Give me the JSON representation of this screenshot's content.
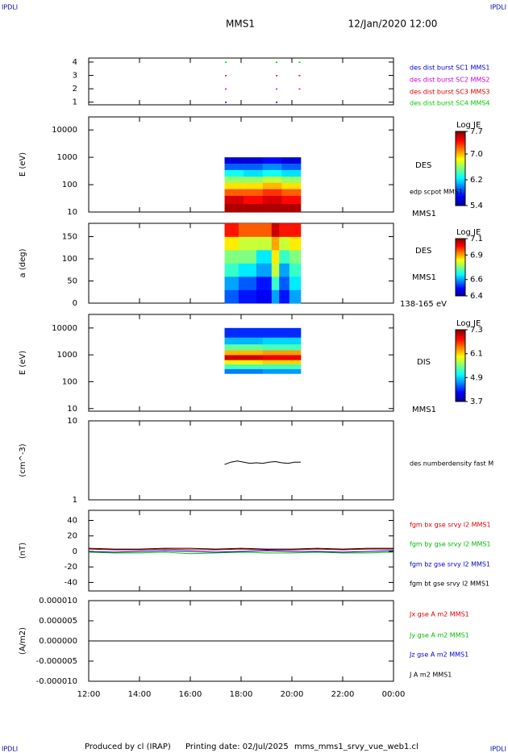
{
  "header": {
    "corners": [
      "IPDLI",
      "IPDLI",
      "IPDLI",
      "IPDLI"
    ],
    "spacecraft": "MMS1",
    "date": "12/Jan/2020 12:00"
  },
  "footer": {
    "produced": "Produced by cl (IRAP)",
    "printing": "Printing date: 02/Jul/2025",
    "file": "mms_mms1_srvy_vue_web1.cl"
  },
  "chart_data": [
    {
      "type": "scatter",
      "xlim": [
        12,
        24
      ],
      "ylim": [
        0.8,
        4.3
      ],
      "yticks": [
        1,
        2,
        3,
        4
      ],
      "series": [
        {
          "name": "des dist burst SC1 MMS1",
          "color": "#0000cc",
          "x": [
            17.4,
            19.4
          ],
          "values": [
            1,
            1
          ]
        },
        {
          "name": "des dist burst SC2 MMS2",
          "color": "#cc00cc",
          "x": [
            17.4,
            19.4,
            20.3
          ],
          "values": [
            2,
            2,
            2
          ]
        },
        {
          "name": "des dist burst SC3 MMS3",
          "color": "#dd0000",
          "x": [
            17.4,
            19.4,
            20.3
          ],
          "values": [
            3,
            3,
            3
          ]
        },
        {
          "name": "des dist burst SC4 MMS4",
          "color": "#00cc00",
          "x": [
            17.4,
            19.4,
            20.3
          ],
          "values": [
            4,
            4,
            4
          ]
        }
      ]
    },
    {
      "type": "heatmap",
      "ylabel": "E (eV)",
      "log_scale": true,
      "xlim": [
        12,
        24
      ],
      "ylim": [
        10,
        30000
      ],
      "yticks": [
        10,
        100,
        1000,
        10000
      ],
      "x_edges": [
        17.35,
        18.1,
        18.85,
        19.6,
        20.35
      ],
      "y_edges": [
        10,
        20,
        40,
        70,
        120,
        200,
        350,
        600,
        1000
      ],
      "values": [
        [
          7.6,
          7.6,
          7.6,
          7.6
        ],
        [
          7.5,
          7.4,
          7.5,
          7.4
        ],
        [
          7.2,
          7.2,
          7.3,
          7.2
        ],
        [
          6.9,
          6.9,
          7.0,
          6.9
        ],
        [
          6.6,
          6.6,
          6.7,
          6.6
        ],
        [
          6.3,
          6.2,
          6.3,
          6.2
        ],
        [
          5.9,
          5.9,
          6.0,
          5.9
        ],
        [
          5.6,
          5.6,
          5.7,
          5.6
        ]
      ],
      "colorbar": {
        "label": "Log JE",
        "lim": [
          5.4,
          7.7
        ],
        "ticks": [
          7.7,
          {
            "value": 7,
            "label": "7.0"
          },
          6.2,
          5.4
        ]
      },
      "annotations": [
        "DES",
        "edp scpot MMS1",
        "MMS1"
      ]
    },
    {
      "type": "heatmap",
      "ylabel": "a (deg)",
      "xlim": [
        12,
        24
      ],
      "ylim": [
        0,
        180
      ],
      "yticks": [
        0,
        50,
        100,
        150
      ],
      "x_edges": [
        17.35,
        17.9,
        18.6,
        19.2,
        19.5,
        19.9,
        20.35
      ],
      "y_edges": [
        0,
        30,
        60,
        90,
        120,
        150,
        180
      ],
      "values": [
        [
          6.55,
          6.5,
          6.48,
          6.6,
          6.5,
          6.6
        ],
        [
          6.6,
          6.55,
          6.5,
          6.7,
          6.55,
          6.65
        ],
        [
          6.7,
          6.65,
          6.6,
          6.8,
          6.6,
          6.7
        ],
        [
          6.75,
          6.75,
          6.65,
          6.85,
          6.7,
          6.75
        ],
        [
          6.85,
          6.8,
          6.8,
          6.9,
          6.8,
          6.85
        ],
        [
          7.0,
          6.95,
          6.95,
          7.05,
          7.0,
          7.0
        ]
      ],
      "colorbar": {
        "label": "Log JE",
        "lim": [
          6.4,
          7.1
        ],
        "ticks": [
          7.1,
          6.9,
          6.6,
          6.4
        ]
      },
      "annotations": [
        "DES",
        "MMS1",
        "138-165 eV"
      ]
    },
    {
      "type": "heatmap",
      "ylabel": "E (eV)",
      "log_scale": true,
      "xlim": [
        12,
        24
      ],
      "ylim": [
        8,
        32000
      ],
      "yticks": [
        10,
        100,
        1000,
        10000
      ],
      "x_edges": [
        17.35,
        18.85,
        20.35
      ],
      "y_edges": [
        200,
        300,
        450,
        650,
        1000,
        1500,
        2500,
        4500,
        10000
      ],
      "values": [
        [
          4.6,
          4.7
        ],
        [
          5.3,
          5.3
        ],
        [
          6.0,
          6.1
        ],
        [
          7.0,
          6.9
        ],
        [
          6.2,
          6.3
        ],
        [
          5.4,
          5.3
        ],
        [
          4.8,
          4.9
        ],
        [
          4.3,
          4.3
        ]
      ],
      "colorbar": {
        "label": "Log JE",
        "lim": [
          3.7,
          7.3
        ],
        "ticks": [
          7.3,
          6.1,
          4.9,
          3.7
        ]
      },
      "annotations": [
        "DIS",
        "MMS1"
      ]
    },
    {
      "type": "line",
      "ylabel": "(cm^-3)",
      "log_scale": true,
      "xlim": [
        12,
        24
      ],
      "ylim": [
        1,
        10
      ],
      "yticks": [
        1,
        10
      ],
      "series": [
        {
          "name": "des numberdensity fast M",
          "color": "#000000",
          "x": [
            17.35,
            17.6,
            17.85,
            18.1,
            18.35,
            18.6,
            18.85,
            19.1,
            19.35,
            19.6,
            19.85,
            20.1,
            20.35
          ],
          "values": [
            2.8,
            3.0,
            3.1,
            3.0,
            2.9,
            2.95,
            2.9,
            3.0,
            3.05,
            2.95,
            2.9,
            3.0,
            3.0
          ]
        }
      ]
    },
    {
      "type": "line",
      "ylabel": "(nT)",
      "xlim": [
        12,
        24
      ],
      "ylim": [
        -51,
        53
      ],
      "yticks": [
        -40,
        -20,
        0,
        20,
        40
      ],
      "series": [
        {
          "name": "fgm bx gse srvy l2 MMS1",
          "color": "#dd0000",
          "x": [
            12,
            13,
            14,
            15,
            16,
            17,
            18,
            19,
            20,
            21,
            22,
            23,
            24
          ],
          "values": [
            3,
            2,
            2,
            3,
            2,
            2,
            3,
            2,
            2,
            3,
            2,
            3,
            3
          ]
        },
        {
          "name": "fgm by gse srvy l2 MMS1",
          "color": "#00bb00",
          "x": [
            12,
            13,
            14,
            15,
            16,
            17,
            18,
            19,
            20,
            21,
            22,
            23,
            24
          ],
          "values": [
            -1,
            -2,
            -2,
            -1,
            -3,
            -2,
            -1,
            -2,
            -2,
            -1,
            -2,
            -2,
            -1
          ]
        },
        {
          "name": "fgm bz gse srvy l2 MMS1",
          "color": "#0000cc",
          "x": [
            12,
            13,
            14,
            15,
            16,
            17,
            18,
            19,
            20,
            21,
            22,
            23,
            24
          ],
          "values": [
            0,
            -1,
            0,
            1,
            0,
            -1,
            0,
            1,
            0,
            0,
            -1,
            0,
            1
          ]
        },
        {
          "name": "fgm bt gse srvy l2 MMS1",
          "color": "#000000",
          "x": [
            12,
            13,
            14,
            15,
            16,
            17,
            18,
            19,
            20,
            21,
            22,
            23,
            24
          ],
          "values": [
            4,
            3,
            3,
            4,
            4,
            3,
            4,
            3,
            3,
            4,
            3,
            4,
            4
          ]
        }
      ]
    },
    {
      "type": "line",
      "ylabel": "(A/m2)",
      "xlim": [
        12,
        24
      ],
      "ylim": [
        -1e-05,
        1e-05
      ],
      "yticks": [
        {
          "value": 1e-05,
          "label": "0.000010"
        },
        {
          "value": 5e-06,
          "label": "0.000005"
        },
        {
          "value": 0,
          "label": "0.000000"
        },
        {
          "value": -5e-06,
          "label": "-0.000005"
        },
        {
          "value": -1e-05,
          "label": "-0.000010"
        }
      ],
      "xticks": [
        {
          "value": 12,
          "label": "12:00"
        },
        {
          "value": 14,
          "label": "14:00"
        },
        {
          "value": 16,
          "label": "16:00"
        },
        {
          "value": 18,
          "label": "18:00"
        },
        {
          "value": 20,
          "label": "20:00"
        },
        {
          "value": 22,
          "label": "22:00"
        },
        {
          "value": 24,
          "label": "00:00"
        }
      ],
      "series": [
        {
          "name": "Jx gse A m2 MMS1",
          "color": "#dd0000",
          "x": [
            12,
            14,
            16,
            18,
            20,
            22,
            24
          ],
          "values": [
            0,
            0,
            0,
            0,
            0,
            0,
            0
          ]
        },
        {
          "name": "Jy gse A m2 MMS1",
          "color": "#00bb00",
          "x": [
            12,
            14,
            16,
            18,
            20,
            22,
            24
          ],
          "values": [
            0,
            0,
            0,
            0,
            0,
            0,
            0
          ]
        },
        {
          "name": "Jz gse A m2 MMS1",
          "color": "#0000cc",
          "x": [
            12,
            14,
            16,
            18,
            20,
            22,
            24
          ],
          "values": [
            0,
            0,
            0,
            0,
            0,
            0,
            0
          ]
        },
        {
          "name": "J A m2 MMS1",
          "color": "#000000",
          "x": [
            12,
            14,
            16,
            18,
            20,
            22,
            24
          ],
          "values": [
            0,
            0,
            0,
            0,
            0,
            0,
            0
          ]
        }
      ]
    }
  ]
}
